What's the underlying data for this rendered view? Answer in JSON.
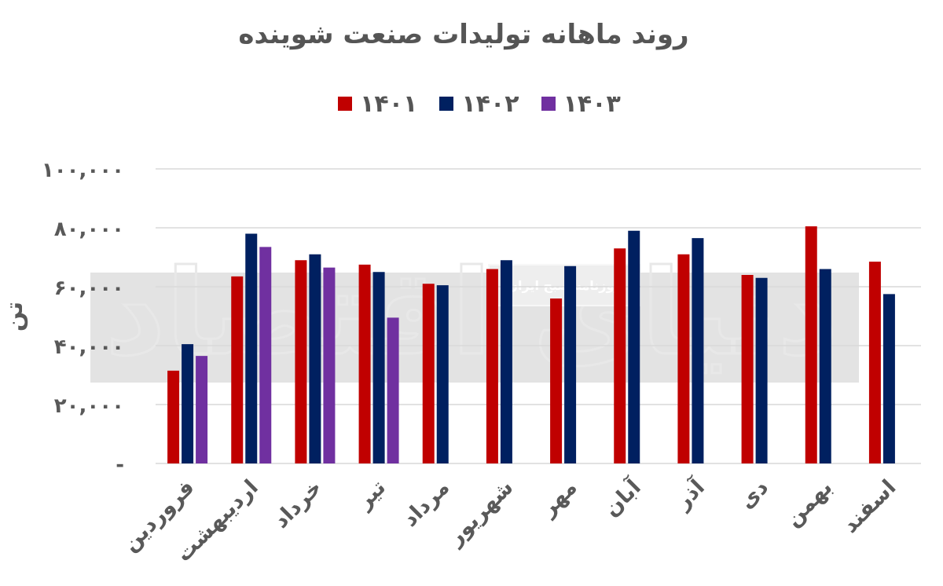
{
  "chart_data": {
    "type": "bar",
    "title": "روند ماهانه تولیدات صنعت شوینده",
    "ylabel": "تن",
    "xlabel": "",
    "ylim": [
      0,
      100000
    ],
    "yticks": [
      "-",
      "۲۰,۰۰۰",
      "۴۰,۰۰۰",
      "۶۰,۰۰۰",
      "۸۰,۰۰۰",
      "۱۰۰,۰۰۰"
    ],
    "yticks_values": [
      0,
      20000,
      40000,
      60000,
      80000,
      100000
    ],
    "grid": true,
    "legend_position": "top-center",
    "categories": [
      "فروردین",
      "اردیبهشت",
      "خرداد",
      "تیر",
      "مرداد",
      "شهریور",
      "مهر",
      "آبان",
      "آذر",
      "دی",
      "بهمن",
      "اسفند"
    ],
    "series": [
      {
        "name": "۱۴۰۱",
        "color": "#c00000",
        "values": [
          31500,
          63500,
          69000,
          67500,
          61000,
          66000,
          56000,
          73000,
          71000,
          64000,
          80500,
          68500
        ]
      },
      {
        "name": "۱۴۰۲",
        "color": "#002060",
        "values": [
          40500,
          78000,
          71000,
          65000,
          60500,
          69000,
          67000,
          79000,
          76500,
          63000,
          66000,
          57500
        ]
      },
      {
        "name": "۱۴۰۳",
        "color": "#7030a0",
        "values": [
          36500,
          73500,
          66500,
          49500,
          null,
          null,
          null,
          null,
          null,
          null,
          null,
          null
        ]
      }
    ]
  },
  "watermark": {
    "text": "روزنامه صبح ایران",
    "logo_text": "دنیای اقتصاد"
  }
}
